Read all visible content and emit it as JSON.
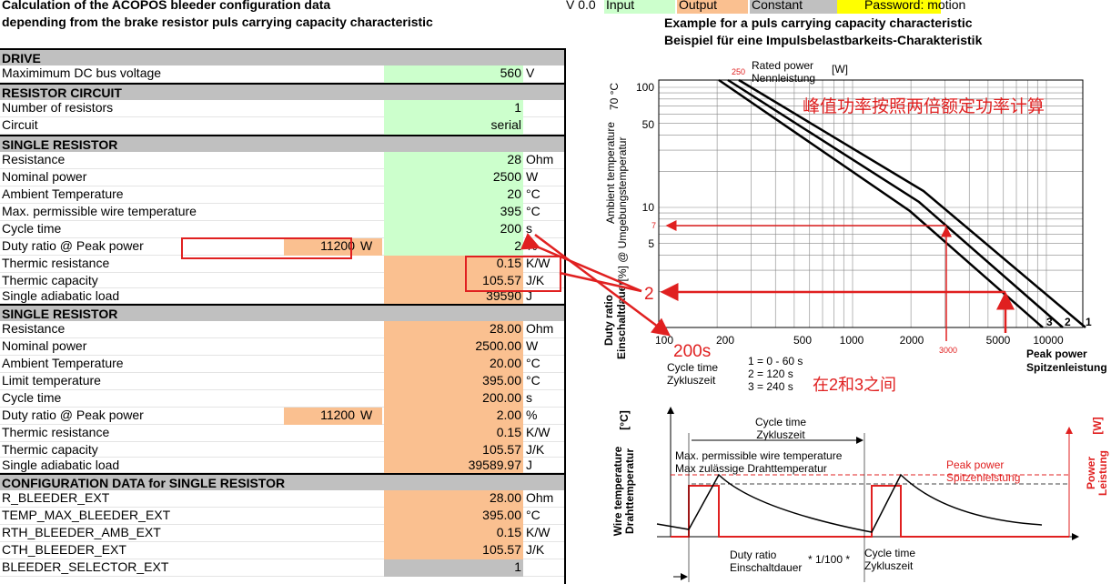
{
  "header": {
    "title": "Calculation of the ACOPOS bleeder configuration data",
    "subtitle": "depending from the brake resistor puls carrying capacity characteristic",
    "version": "V 0.0",
    "legend": [
      "Input",
      "Output",
      "Constant"
    ],
    "password": "Password: motion"
  },
  "sections": [
    {
      "title": "DRIVE",
      "rows": [
        {
          "label": "Maximimum DC bus voltage",
          "value": "560",
          "unit": "V"
        }
      ]
    },
    {
      "title": "RESISTOR CIRCUIT",
      "rows": [
        {
          "label": "Number of resistors",
          "value": "1"
        },
        {
          "label": "Circuit",
          "value": "serial"
        }
      ]
    },
    {
      "title": "SINGLE RESISTOR",
      "rows": [
        {
          "label": "Resistance",
          "value": "28",
          "unit": "Ohm"
        },
        {
          "label": "Nominal power",
          "value": "2500",
          "unit": "W"
        },
        {
          "label": "Ambient Temperature",
          "value": "20",
          "unit": "°C"
        },
        {
          "label": "Max. permissible wire temperature",
          "value": "395",
          "unit": "°C"
        },
        {
          "label": "Cycle time",
          "value": "200",
          "unit": "s"
        },
        {
          "label": "Duty ratio @ Peak power",
          "peak": "11200",
          "peak_unit": "W",
          "value": "2",
          "unit": "%"
        },
        {
          "label": "Thermic resistance",
          "value": "0.15",
          "unit": "K/W"
        },
        {
          "label": "Thermic capacity",
          "value": "105.57",
          "unit": "J/K"
        },
        {
          "label": "Single adiabatic load",
          "value": "39590",
          "unit": "J"
        }
      ]
    },
    {
      "title": "SINGLE RESISTOR",
      "rows": [
        {
          "label": "Resistance",
          "value": "28.00",
          "unit": "Ohm"
        },
        {
          "label": "Nominal power",
          "value": "2500.00",
          "unit": "W"
        },
        {
          "label": "Ambient Temperature",
          "value": "20.00",
          "unit": "°C"
        },
        {
          "label": "Limit temperature",
          "value": "395.00",
          "unit": "°C"
        },
        {
          "label": "Cycle time",
          "value": "200.00",
          "unit": "s"
        },
        {
          "label": "Duty ratio @ Peak power",
          "peak": "11200",
          "peak_unit": "W",
          "value": "2.00",
          "unit": "%"
        },
        {
          "label": "Thermic resistance",
          "value": "0.15",
          "unit": "K/W"
        },
        {
          "label": "Thermic capacity",
          "value": "105.57",
          "unit": "J/K"
        },
        {
          "label": "Single adiabatic load",
          "value": "39589.97",
          "unit": "J"
        }
      ]
    },
    {
      "title": "CONFIGURATION DATA for SINGLE RESISTOR",
      "rows": [
        {
          "label": "R_BLEEDER_EXT",
          "value": "28.00",
          "unit": "Ohm"
        },
        {
          "label": "TEMP_MAX_BLEEDER_EXT",
          "value": "395.00",
          "unit": "°C"
        },
        {
          "label": "RTH_BLEEDER_AMB_EXT",
          "value": "0.15",
          "unit": "K/W"
        },
        {
          "label": "CTH_BLEEDER_EXT",
          "value": "105.57",
          "unit": "J/K"
        },
        {
          "label": "BLEEDER_SELECTOR_EXT",
          "value": "1"
        }
      ]
    }
  ],
  "diagram": {
    "title": "Example for a puls carrying capacity characteristic",
    "subtitle": "Beispiel für eine Impulsbelastbarkeits-Charakteristik",
    "rated_power": "Rated power",
    "rated_power_de": "Nennleistung",
    "rated_unit": "[W]",
    "rated_value": "250",
    "note": "峰值功率按照两倍额定功率计算",
    "y_labels": [
      "Ambient temperature",
      "[%] @ Umgebungstemperatur",
      "Duty ratio",
      "Einschaltdauer",
      "70 °C"
    ],
    "y_ticks": [
      "100",
      "50",
      "10",
      "7",
      "5"
    ],
    "x_ticks": [
      "100",
      "200",
      "500",
      "1000",
      "2000",
      "3000",
      "5000",
      "10000"
    ],
    "x_label": "Peak power",
    "x_label_de": "Spitzenleistung",
    "curves": [
      "3",
      "2",
      "1"
    ],
    "cycle": "Cycle time",
    "cycle_de": "Zykluszeit",
    "legend": [
      "1 = 0 - 60 s",
      "2 = 120 s",
      "3 = 240 s"
    ],
    "mark_duty": "2",
    "mark_cycle": "200s",
    "mark_between": "在2和3之间"
  },
  "timing": {
    "cycle": "Cycle time",
    "cycle_de": "Zykluszeit",
    "max_temp": "Max. permissible wire temperature",
    "max_temp_de": "Max zulässige Drahttemperatur",
    "peak": "Peak power",
    "peak_de": "Spitzenleistung",
    "wire": "Wire temperature",
    "wire_de": "Drahttemperatur",
    "wire_unit": "[°C]",
    "power": "Power",
    "power_de": "Leistung",
    "power_unit": "[W]",
    "duty": "Duty ratio",
    "duty_de": "Einschaltdauer",
    "factor": "* 1/100 *",
    "cycle2": "Cycle time",
    "cycle2_de": "Zykluszeit"
  }
}
